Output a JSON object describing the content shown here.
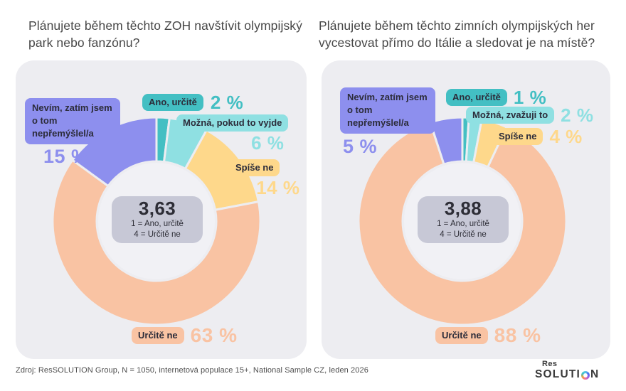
{
  "footer": {
    "source": "Zdroj: ResSOLUTION Group, N = 1050, internetová populace 15+, National Sample CZ, leden 2026",
    "logo": {
      "top": "Res",
      "word_left": "SOLUTI",
      "word_right": "N"
    }
  },
  "style": {
    "card_bg": "#ededf1",
    "hole_bg": "#f1f1f5",
    "center_box_bg": "#c7c8d6"
  },
  "chart_data": [
    {
      "type": "pie",
      "subtype": "donut",
      "title": "Plánujete během těchto ZOH navštívit olympijský park nebo fanzónu?",
      "center_value": "3,63",
      "scale_note_1": "1 = Ano, určitě",
      "scale_note_2": "4 = Určitě ne",
      "legend_position": "around-slices",
      "segments": [
        {
          "label": "Ano, určitě",
          "value": 2,
          "pct_label": "2 %",
          "color": "#43bfc3"
        },
        {
          "label": "Možná, pokud to vyjde",
          "value": 6,
          "pct_label": "6 %",
          "color": "#8fe0e2"
        },
        {
          "label": "Spíše ne",
          "value": 14,
          "pct_label": "14 %",
          "color": "#fed88b"
        },
        {
          "label": "Určitě ne",
          "value": 63,
          "pct_label": "63 %",
          "color": "#f9c3a3"
        },
        {
          "label": "Nevím, zatím jsem o tom nepřemýšlel/a",
          "value": 15,
          "pct_label": "15 %",
          "color": "#8d8fee"
        }
      ]
    },
    {
      "type": "pie",
      "subtype": "donut",
      "title": "Plánujete během těchto zimních olympijských her vycestovat přímo do Itálie a sledovat je na místě?",
      "center_value": "3,88",
      "scale_note_1": "1 = Ano, určitě",
      "scale_note_2": "4 = Určitě ne",
      "legend_position": "around-slices",
      "segments": [
        {
          "label": "Ano, určitě",
          "value": 1,
          "pct_label": "1 %",
          "color": "#43bfc3"
        },
        {
          "label": "Možná, zvažuji to",
          "value": 2,
          "pct_label": "2 %",
          "color": "#8fe0e2"
        },
        {
          "label": "Spíše ne",
          "value": 4,
          "pct_label": "4 %",
          "color": "#fed88b"
        },
        {
          "label": "Určitě ne",
          "value": 88,
          "pct_label": "88 %",
          "color": "#f9c3a3"
        },
        {
          "label": "Nevím, zatím jsem o tom nepřemýšlel/a",
          "value": 5,
          "pct_label": "5 %",
          "color": "#8d8fee"
        }
      ]
    }
  ]
}
